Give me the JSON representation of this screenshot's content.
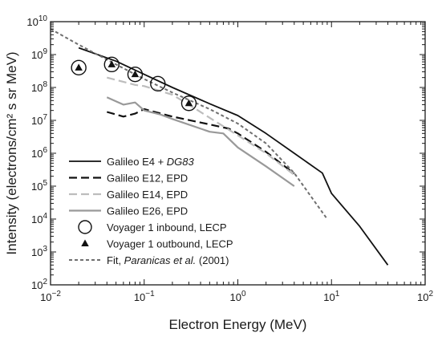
{
  "chart_data": {
    "type": "line",
    "title": "",
    "xlabel": "Electron Energy (MeV)",
    "ylabel": "Intensity (electrons/cm² s sr MeV)",
    "x_scale": "log",
    "y_scale": "log",
    "xlim": [
      0.01,
      100
    ],
    "ylim": [
      100,
      10000000000
    ],
    "grid": false,
    "legend_position": "bottom-left",
    "x_tick_labels": [
      {
        "base": "10",
        "exp": "−2",
        "value": 0.01
      },
      {
        "base": "10",
        "exp": "−1",
        "value": 0.1
      },
      {
        "base": "10",
        "exp": "0",
        "value": 1
      },
      {
        "base": "10",
        "exp": "1",
        "value": 10
      },
      {
        "base": "10",
        "exp": "2",
        "value": 100
      }
    ],
    "y_tick_labels": [
      {
        "base": "10",
        "exp": "2",
        "value": 100
      },
      {
        "base": "10",
        "exp": "3",
        "value": 1000
      },
      {
        "base": "10",
        "exp": "4",
        "value": 10000
      },
      {
        "base": "10",
        "exp": "5",
        "value": 100000
      },
      {
        "base": "10",
        "exp": "6",
        "value": 1000000
      },
      {
        "base": "10",
        "exp": "7",
        "value": 10000000
      },
      {
        "base": "10",
        "exp": "8",
        "value": 100000000
      },
      {
        "base": "10",
        "exp": "9",
        "value": 1000000000
      },
      {
        "base": "10",
        "exp": "10",
        "value": 10000000000
      }
    ],
    "series": [
      {
        "legend_parts": [
          {
            "text": "Galileo E4 + ",
            "italic": false
          },
          {
            "text": "DG83",
            "italic": true
          }
        ],
        "style": "solid",
        "color": "#111111",
        "width": 1.8,
        "x": [
          0.02,
          0.05,
          0.1,
          0.2,
          0.5,
          1,
          2,
          4,
          8,
          10,
          20,
          40
        ],
        "y": [
          1600000000.0,
          630000000.0,
          250000000.0,
          100000000.0,
          32000000.0,
          14000000.0,
          4000000.0,
          1000000.0,
          250000.0,
          60000.0,
          6000.0,
          400.0
        ]
      },
      {
        "legend_parts": [
          {
            "text": "Galileo E12, EPD",
            "italic": false
          }
        ],
        "style": "dashed",
        "color": "#111111",
        "width": 2.2,
        "x": [
          0.04,
          0.06,
          0.08,
          0.1,
          0.2,
          0.5,
          0.8,
          1,
          2,
          4
        ],
        "y": [
          18000000.0,
          13000000.0,
          16000000.0,
          22000000.0,
          13000000.0,
          7500000.0,
          5600000.0,
          4000000.0,
          1100000.0,
          240000.0
        ]
      },
      {
        "legend_parts": [
          {
            "text": "Galileo E14, EPD",
            "italic": false
          }
        ],
        "style": "dashed",
        "color": "#bdbdbd",
        "width": 2.2,
        "x": [
          0.04,
          0.08,
          0.1,
          0.2,
          0.3,
          0.5,
          1,
          2,
          4
        ],
        "y": [
          200000000.0,
          120000000.0,
          110000000.0,
          60000000.0,
          30000000.0,
          12000000.0,
          3500000.0,
          1000000.0,
          220000.0
        ]
      },
      {
        "legend_parts": [
          {
            "text": "Galileo E26, EPD",
            "italic": false
          }
        ],
        "style": "solid",
        "color": "#999999",
        "width": 2.2,
        "x": [
          0.04,
          0.06,
          0.08,
          0.1,
          0.15,
          0.2,
          0.5,
          0.7,
          1,
          2,
          4
        ],
        "y": [
          50000000.0,
          30000000.0,
          35000000.0,
          20000000.0,
          15000000.0,
          11000000.0,
          4500000.0,
          4000000.0,
          1500000.0,
          400000.0,
          100000.0
        ]
      },
      {
        "legend_parts": [
          {
            "text": "Voyager 1 inbound, LECP",
            "italic": false
          }
        ],
        "style": "marker-circle",
        "color": "#111111",
        "x": [
          0.02,
          0.045,
          0.08,
          0.14,
          0.3
        ],
        "y": [
          400000000.0,
          500000000.0,
          250000000.0,
          130000000.0,
          33000000.0
        ]
      },
      {
        "legend_parts": [
          {
            "text": "Voyager 1 outbound, LECP",
            "italic": false
          }
        ],
        "style": "marker-triangle",
        "color": "#111111",
        "x": [
          0.02,
          0.045,
          0.08,
          0.3
        ],
        "y": [
          400000000.0,
          500000000.0,
          250000000.0,
          33000000.0
        ]
      },
      {
        "legend_parts": [
          {
            "text": "Fit, ",
            "italic": false
          },
          {
            "text": "Paranicas et al.",
            "italic": true
          },
          {
            "text": " (2001)",
            "italic": false
          }
        ],
        "style": "dotted",
        "color": "#6f6f6f",
        "width": 2.0,
        "x": [
          0.01,
          0.02,
          0.05,
          0.1,
          0.2,
          0.5,
          1,
          2,
          4,
          9
        ],
        "y": [
          6000000000.0,
          2000000000.0,
          500000000.0,
          180000000.0,
          70000000.0,
          22000000.0,
          8000000.0,
          2000000.0,
          250000.0,
          10000.0
        ]
      }
    ]
  }
}
